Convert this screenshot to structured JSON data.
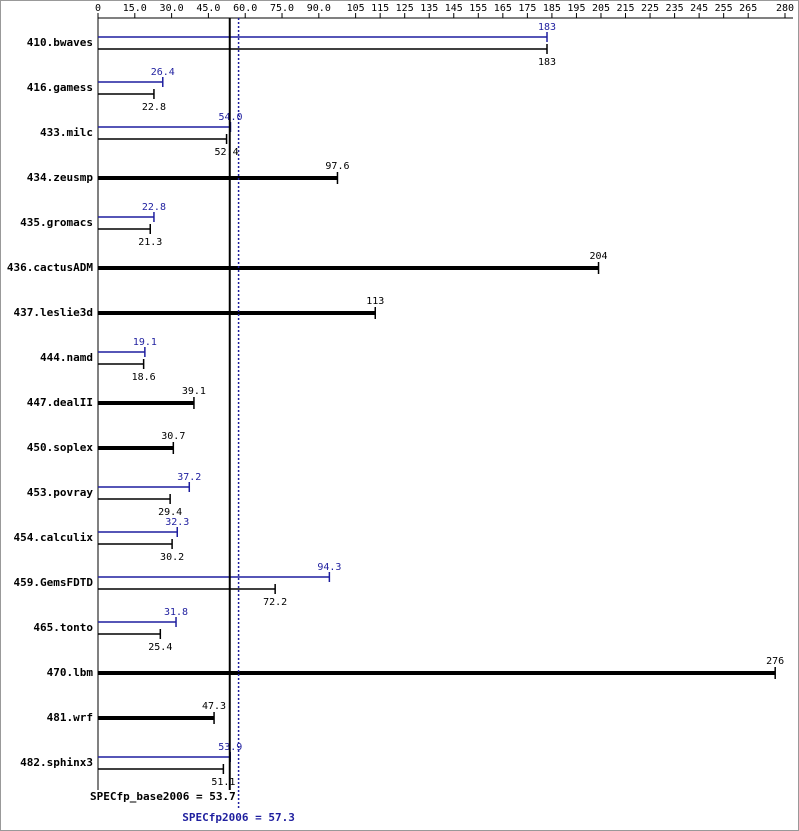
{
  "chart_data": {
    "type": "bar",
    "categories": [
      "410.bwaves",
      "416.gamess",
      "433.milc",
      "434.zeusmp",
      "435.gromacs",
      "436.cactusADM",
      "437.leslie3d",
      "444.namd",
      "447.dealII",
      "450.soplex",
      "453.povray",
      "454.calculix",
      "459.GemsFDTD",
      "465.tonto",
      "470.lbm",
      "481.wrf",
      "482.sphinx3"
    ],
    "series": [
      {
        "color": "#000000",
        "values": [
          183,
          22.8,
          52.4,
          97.6,
          21.3,
          204,
          113,
          18.6,
          39.1,
          30.7,
          29.4,
          30.2,
          72.2,
          25.4,
          276,
          47.3,
          51.1
        ]
      },
      {
        "color": "#1f1f9f",
        "values": [
          183,
          26.4,
          54.0,
          null,
          22.8,
          null,
          null,
          19.1,
          null,
          null,
          37.2,
          32.3,
          94.3,
          31.8,
          null,
          null,
          53.9
        ],
        "value_labels": [
          "183",
          "26.4",
          "54.0",
          null,
          "22.8",
          null,
          null,
          "19.1",
          null,
          null,
          "37.2",
          "32.3",
          "94.3",
          "31.8",
          null,
          null,
          "53.9"
        ]
      }
    ],
    "xlim": [
      0,
      280
    ],
    "xticks": [
      0,
      {
        "value": 15,
        "label": "15.0"
      },
      {
        "value": 30,
        "label": "30.0"
      },
      {
        "value": 45,
        "label": "45.0"
      },
      {
        "value": 60,
        "label": "60.0"
      },
      {
        "value": 75,
        "label": "75.0"
      },
      {
        "value": 90,
        "label": "90.0"
      },
      105,
      115,
      125,
      135,
      145,
      155,
      165,
      175,
      185,
      195,
      205,
      215,
      225,
      235,
      245,
      255,
      265,
      280
    ],
    "reference_lines": [
      {
        "text": "SPECfp_base2006 = 53.7",
        "value": 53.7,
        "color": "#000000",
        "style": "solid"
      },
      {
        "text": "SPECfp2006 = 57.3",
        "value": 57.3,
        "color": "#1f1f9f",
        "style": "dotted"
      }
    ]
  }
}
